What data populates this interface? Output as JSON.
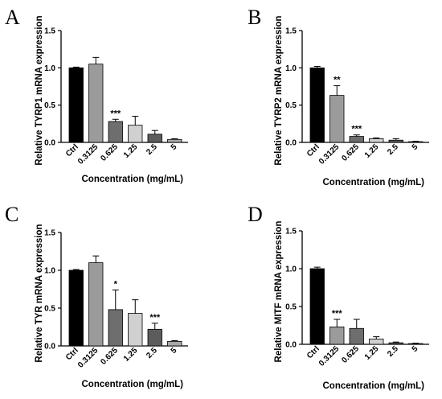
{
  "chart_data": [
    {
      "type": "bar",
      "panel": "A",
      "categories": [
        "Ctrl",
        "0.3125",
        "0.625",
        "1.25",
        "2.5",
        "5"
      ],
      "values": [
        1.0,
        1.05,
        0.28,
        0.23,
        0.11,
        0.04
      ],
      "errors": [
        0.01,
        0.09,
        0.03,
        0.12,
        0.05,
        0.01
      ],
      "significance": [
        "",
        "",
        "***",
        "",
        "",
        ""
      ],
      "ylabel": "Relative TYRP1 mRNA expression",
      "xlabel": "Concentration (mg/mL)",
      "ylim": [
        0,
        1.5
      ],
      "yticks": [
        "0.0",
        "0.5",
        "1.0",
        "1.5"
      ]
    },
    {
      "type": "bar",
      "panel": "B",
      "categories": [
        "Ctrl",
        "0.3125",
        "0.625",
        "1.25",
        "2.5",
        "5"
      ],
      "values": [
        1.0,
        0.63,
        0.08,
        0.05,
        0.03,
        0.01
      ],
      "errors": [
        0.02,
        0.13,
        0.02,
        0.01,
        0.02,
        0.005
      ],
      "significance": [
        "",
        "**",
        "***",
        "",
        "",
        ""
      ],
      "ylabel": "Relative TYRP2 mRNA expression",
      "xlabel": "Concentration (mg/mL)",
      "ylim": [
        0,
        1.5
      ],
      "yticks": [
        "0.0",
        "0.5",
        "1.0",
        "1.5"
      ]
    },
    {
      "type": "bar",
      "panel": "C",
      "categories": [
        "Ctrl",
        "0.3125",
        "0.625",
        "1.25",
        "2.5",
        "5"
      ],
      "values": [
        1.0,
        1.1,
        0.48,
        0.43,
        0.22,
        0.06
      ],
      "errors": [
        0.01,
        0.09,
        0.26,
        0.18,
        0.08,
        0.01
      ],
      "significance": [
        "",
        "",
        "*",
        "",
        "***",
        ""
      ],
      "ylabel": "Relative TYR mRNA expression",
      "xlabel": "Concentration (mg/mL)",
      "ylim": [
        0,
        1.5
      ],
      "yticks": [
        "0.0",
        "0.5",
        "1.0",
        "1.5"
      ]
    },
    {
      "type": "bar",
      "panel": "D",
      "categories": [
        "Ctrl",
        "0.3125",
        "0.625",
        "1.25",
        "2.5",
        "5"
      ],
      "values": [
        1.0,
        0.23,
        0.21,
        0.07,
        0.02,
        0.01
      ],
      "errors": [
        0.02,
        0.1,
        0.12,
        0.03,
        0.01,
        0.005
      ],
      "significance": [
        "",
        "***",
        "",
        "",
        "",
        ""
      ],
      "ylabel": "Relative MITF mRNA expression",
      "xlabel": "Concentration (mg/mL)",
      "ylim": [
        0,
        1.5
      ],
      "yticks": [
        "0.0",
        "0.5",
        "1.0",
        "1.5"
      ]
    }
  ],
  "bar_colors": [
    "#000000",
    "#9b9b9b",
    "#6e6e6e",
    "#d0d0d0",
    "#5c5c5c",
    "#a8a8a8"
  ]
}
